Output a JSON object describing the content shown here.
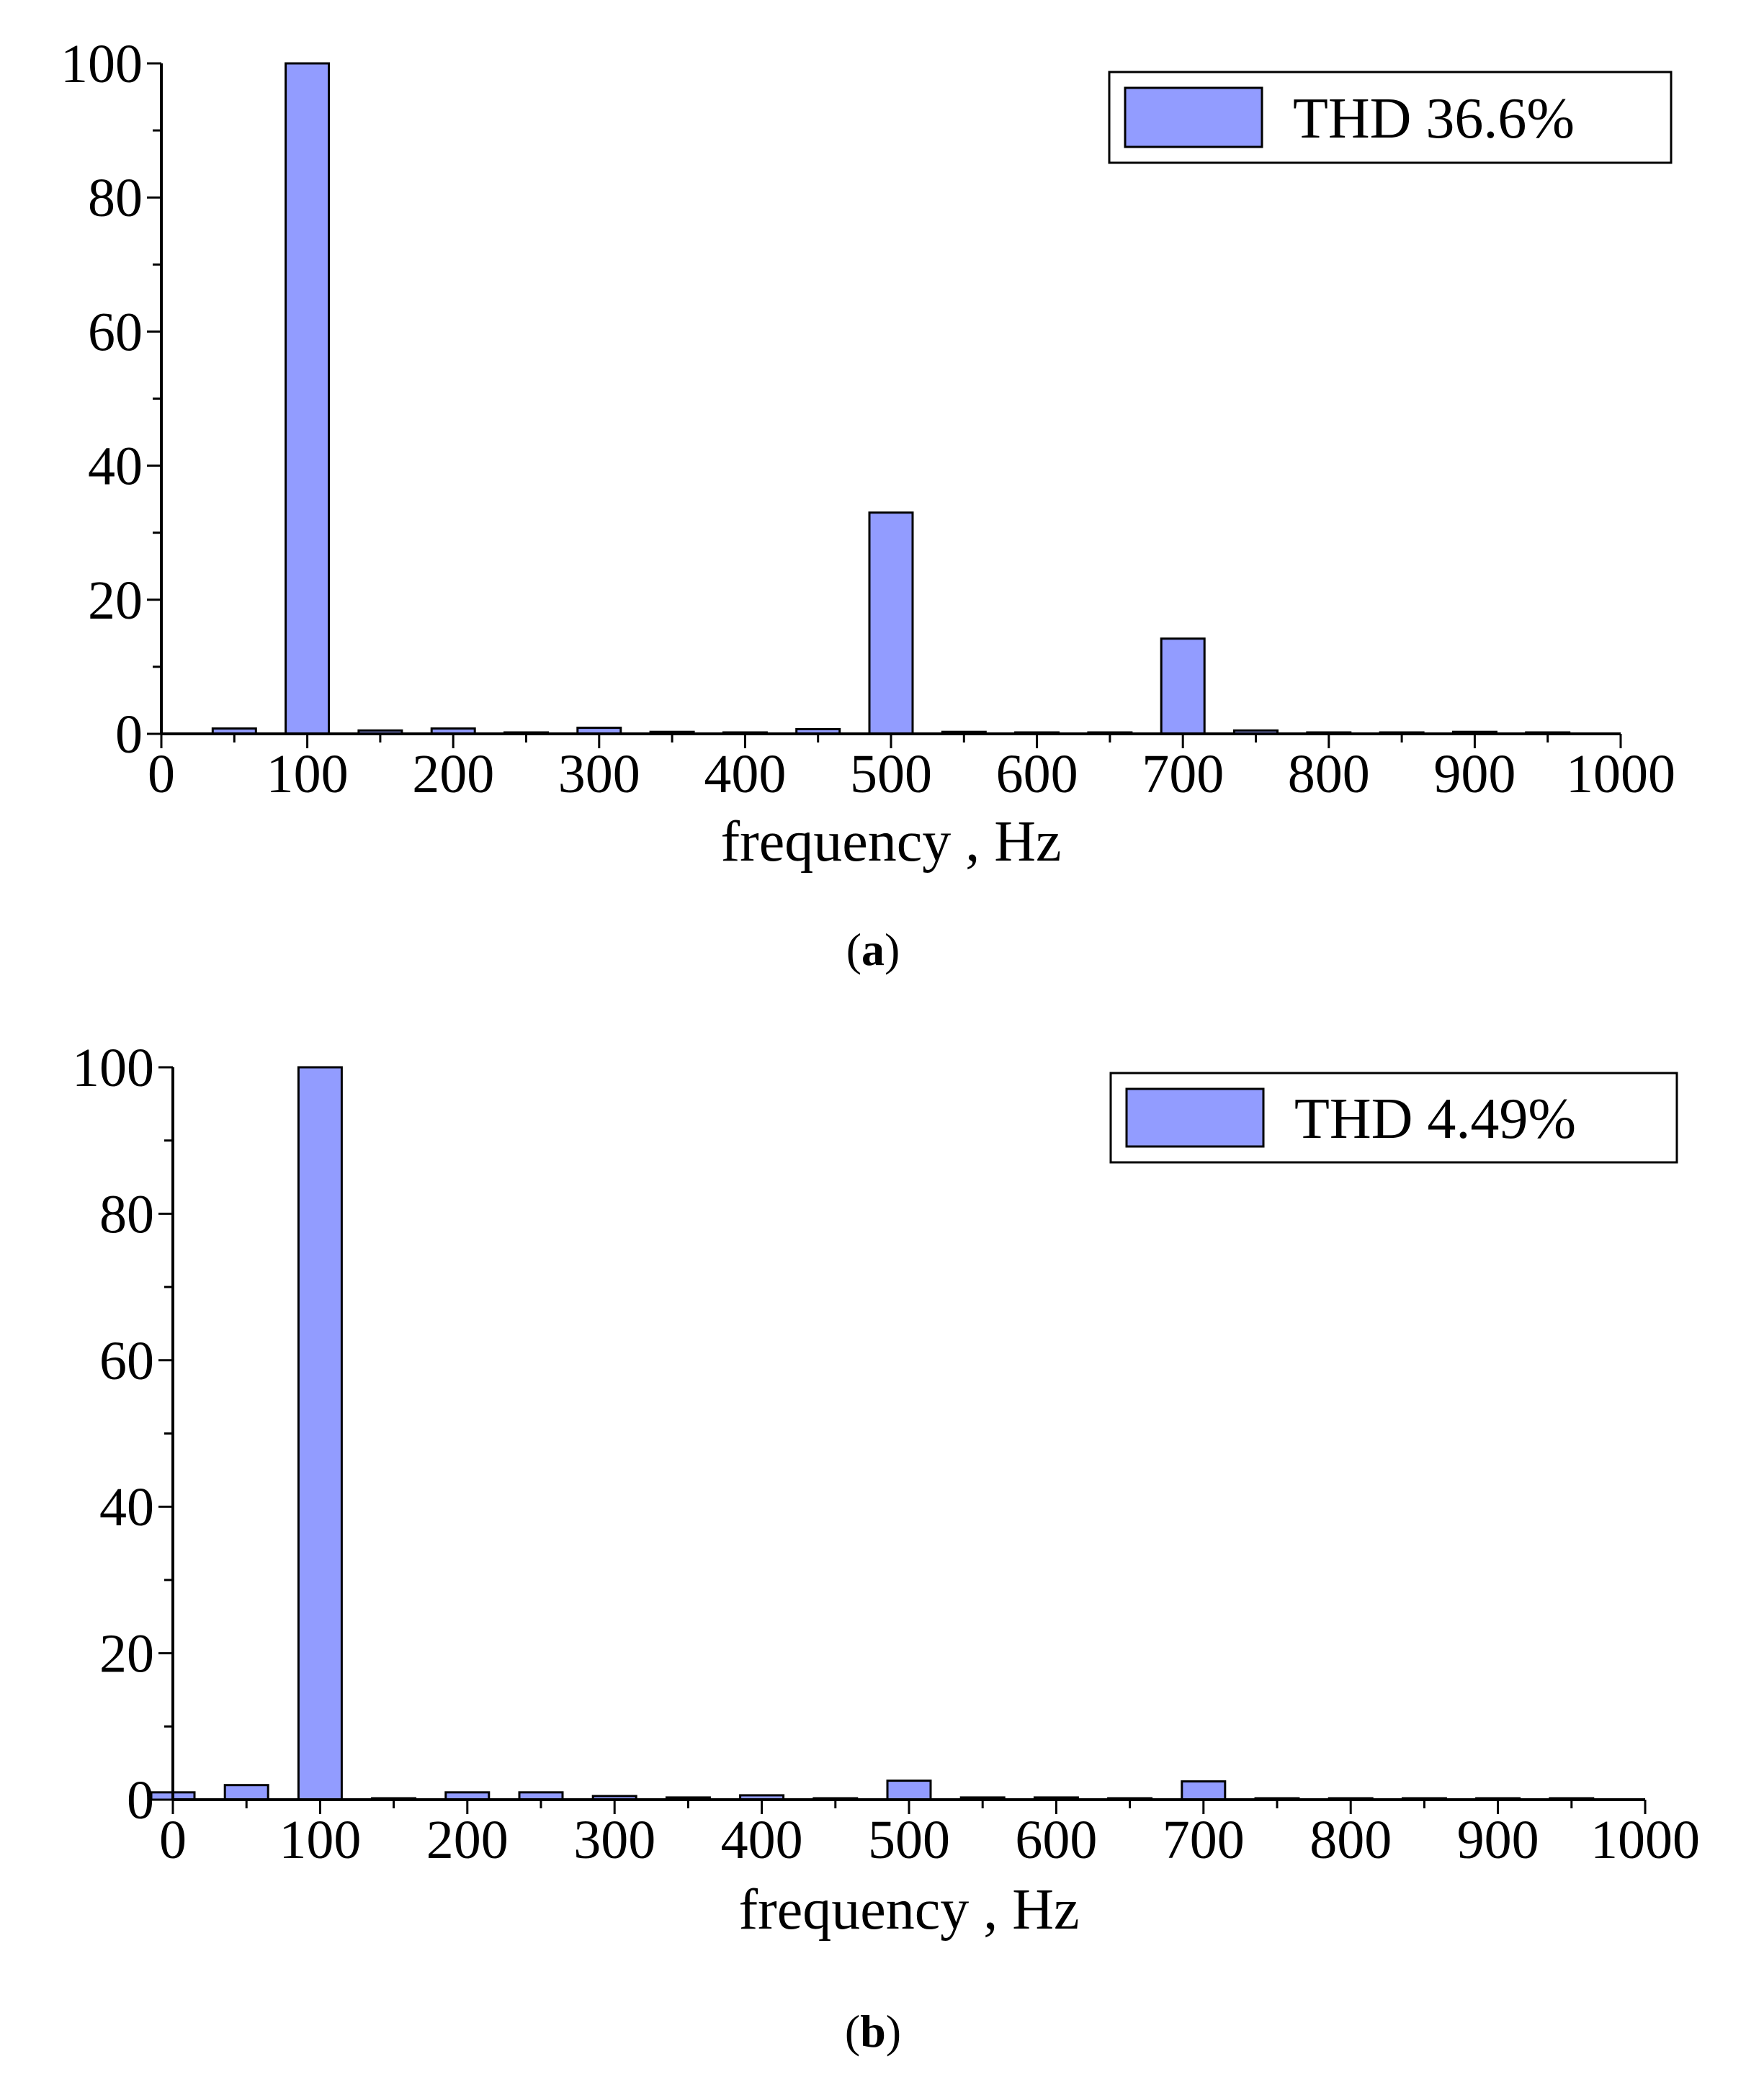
{
  "chart_data": [
    {
      "type": "bar",
      "panel_label": "a",
      "xlabel": "frequency , Hz",
      "ylabel": "",
      "xlim": [
        0,
        1000
      ],
      "ylim": [
        0,
        100
      ],
      "x_ticks": [
        0,
        100,
        200,
        300,
        400,
        500,
        600,
        700,
        800,
        900,
        1000
      ],
      "y_ticks": [
        0,
        20,
        40,
        60,
        80,
        100
      ],
      "bar_color": "#929cff",
      "legend_position": "top-right",
      "series": [
        {
          "name": "THD 36.6%",
          "x": [
            50,
            100,
            150,
            200,
            250,
            300,
            350,
            400,
            450,
            500,
            550,
            600,
            650,
            700,
            750,
            800,
            850,
            900,
            950
          ],
          "values": [
            0.8,
            100,
            0.5,
            0.8,
            0.2,
            0.9,
            0.3,
            0.1,
            0.7,
            33.0,
            0.3,
            0.0,
            0.2,
            14.2,
            0.5,
            0.1,
            0.2,
            0.3,
            0.1
          ]
        }
      ],
      "grid": false
    },
    {
      "type": "bar",
      "panel_label": "b",
      "xlabel": "frequency , Hz",
      "ylabel": "",
      "xlim": [
        0,
        1000
      ],
      "ylim": [
        0,
        100
      ],
      "x_ticks": [
        0,
        100,
        200,
        300,
        400,
        500,
        600,
        700,
        800,
        900,
        1000
      ],
      "y_ticks": [
        0,
        20,
        40,
        60,
        80,
        100
      ],
      "bar_color": "#929cff",
      "legend_position": "top-right",
      "series": [
        {
          "name": "THD 4.49%",
          "x": [
            0,
            50,
            100,
            150,
            200,
            250,
            300,
            350,
            400,
            450,
            500,
            550,
            600,
            650,
            700,
            750,
            800,
            850,
            900,
            950
          ],
          "values": [
            1.0,
            2.0,
            100,
            0.2,
            1.0,
            1.0,
            0.5,
            0.3,
            0.6,
            0.2,
            2.6,
            0.3,
            0.3,
            0.2,
            2.5,
            0.0,
            0.2,
            0.2,
            0.2,
            0.2
          ]
        }
      ],
      "grid": false
    }
  ]
}
